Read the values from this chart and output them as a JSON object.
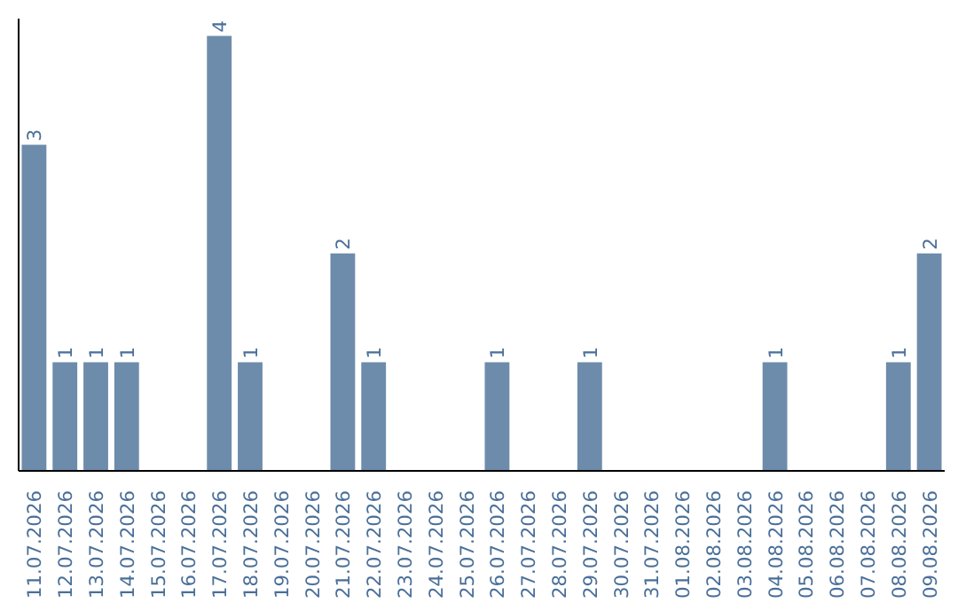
{
  "chart_data": {
    "type": "bar",
    "categories": [
      "11.07.2026",
      "12.07.2026",
      "13.07.2026",
      "14.07.2026",
      "15.07.2026",
      "16.07.2026",
      "17.07.2026",
      "18.07.2026",
      "19.07.2026",
      "20.07.2026",
      "21.07.2026",
      "22.07.2026",
      "23.07.2026",
      "24.07.2026",
      "25.07.2026",
      "26.07.2026",
      "27.07.2026",
      "28.07.2026",
      "29.07.2026",
      "30.07.2026",
      "31.07.2026",
      "01.08.2026",
      "02.08.2026",
      "03.08.2026",
      "04.08.2026",
      "05.08.2026",
      "06.08.2026",
      "07.08.2026",
      "08.08.2026",
      "09.08.2026"
    ],
    "values": [
      3,
      1,
      1,
      1,
      0,
      0,
      4,
      1,
      0,
      0,
      2,
      1,
      0,
      0,
      0,
      1,
      0,
      0,
      1,
      0,
      0,
      0,
      0,
      0,
      1,
      0,
      0,
      0,
      1,
      2
    ],
    "value_labels": [
      "3",
      "1",
      "1",
      "1",
      null,
      null,
      "4",
      "1",
      null,
      null,
      "2",
      "1",
      null,
      null,
      null,
      "1",
      null,
      null,
      "1",
      null,
      null,
      null,
      null,
      null,
      "1",
      null,
      null,
      null,
      "1",
      "2"
    ],
    "color": "#6d8cab",
    "tick_labels": "x",
    "grid": false
  }
}
